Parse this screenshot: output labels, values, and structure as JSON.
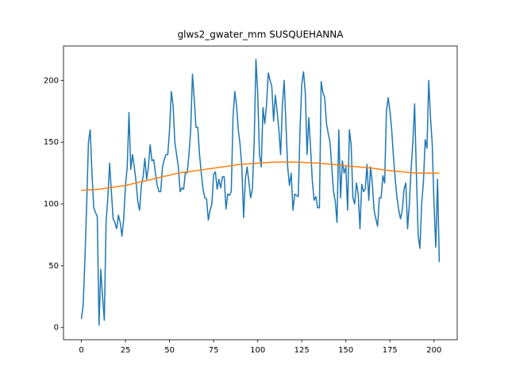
{
  "chart_data": {
    "type": "line",
    "title": "glws2_gwater_mm SUSQUEHANNA",
    "xlim": [
      -10.15,
      213.15
    ],
    "ylim": [
      -9.8,
      227.8
    ],
    "xticks": [
      0,
      25,
      50,
      75,
      100,
      125,
      150,
      175,
      200
    ],
    "yticks": [
      0,
      50,
      100,
      150,
      200
    ],
    "series": [
      {
        "color": "#1f77b4",
        "x": [
          0,
          1,
          2,
          3,
          4,
          5,
          6,
          7,
          8,
          9,
          10,
          11,
          12,
          13,
          14,
          15,
          16,
          17,
          18,
          19,
          20,
          21,
          22,
          23,
          24,
          25,
          26,
          27,
          28,
          29,
          30,
          31,
          32,
          33,
          34,
          35,
          36,
          37,
          38,
          39,
          40,
          41,
          42,
          43,
          44,
          45,
          46,
          47,
          48,
          49,
          50,
          51,
          52,
          53,
          54,
          55,
          56,
          57,
          58,
          59,
          60,
          61,
          62,
          63,
          64,
          65,
          66,
          67,
          68,
          69,
          70,
          71,
          72,
          73,
          74,
          75,
          76,
          77,
          78,
          79,
          80,
          81,
          82,
          83,
          84,
          85,
          86,
          87,
          88,
          89,
          90,
          91,
          92,
          93,
          94,
          95,
          96,
          97,
          98,
          99,
          100,
          101,
          102,
          103,
          104,
          105,
          106,
          107,
          108,
          109,
          110,
          111,
          112,
          113,
          114,
          115,
          116,
          117,
          118,
          119,
          120,
          121,
          122,
          123,
          124,
          125,
          126,
          127,
          128,
          129,
          130,
          131,
          132,
          133,
          134,
          135,
          136,
          137,
          138,
          139,
          140,
          141,
          142,
          143,
          144,
          145,
          146,
          147,
          148,
          149,
          150,
          151,
          152,
          153,
          154,
          155,
          156,
          157,
          158,
          159,
          160,
          161,
          162,
          163,
          164,
          165,
          166,
          167,
          168,
          169,
          170,
          171,
          172,
          173,
          174,
          175,
          176,
          177,
          178,
          179,
          180,
          181,
          182,
          183,
          184,
          185,
          186,
          187,
          188,
          189,
          190,
          191,
          192,
          193,
          194,
          195,
          196,
          197,
          198,
          199,
          200,
          201,
          202,
          203
        ],
        "values": [
          7,
          18,
          55,
          100,
          150,
          160,
          125,
          97,
          93,
          90,
          2,
          47,
          25,
          6,
          85,
          105,
          133,
          110,
          88,
          85,
          80,
          91,
          85,
          74,
          88,
          115,
          130,
          174,
          128,
          140,
          130,
          118,
          102,
          95,
          115,
          122,
          137,
          120,
          130,
          148,
          135,
          136,
          125,
          115,
          110,
          110,
          130,
          136,
          140,
          140,
          160,
          191,
          180,
          150,
          140,
          130,
          110,
          113,
          112,
          126,
          125,
          140,
          160,
          205,
          185,
          162,
          162,
          140,
          125,
          112,
          105,
          104,
          87,
          95,
          100,
          124,
          126,
          112,
          120,
          113,
          122,
          122,
          96,
          108,
          107,
          110,
          170,
          191,
          180,
          160,
          148,
          130,
          89,
          120,
          130,
          118,
          105,
          112,
          150,
          217,
          190,
          140,
          130,
          178,
          165,
          180,
          206,
          200,
          195,
          167,
          188,
          175,
          160,
          140,
          180,
          200,
          165,
          130,
          115,
          125,
          95,
          108,
          107,
          106,
          160,
          197,
          207,
          190,
          140,
          170,
          145,
          118,
          103,
          106,
          97,
          97,
          199,
          190,
          186,
          165,
          157,
          150,
          130,
          110,
          102,
          85,
          160,
          105,
          135,
          125,
          130,
          95,
          160,
          148,
          105,
          100,
          117,
          108,
          80,
          116,
          110,
          112,
          132,
          103,
          130,
          117,
          95,
          88,
          82,
          105,
          105,
          123,
          117,
          175,
          186,
          175,
          160,
          138,
          120,
          105,
          95,
          88,
          95,
          112,
          117,
          80,
          100,
          128,
          150,
          181,
          125,
          75,
          64,
          100,
          118,
          152,
          145,
          200,
          170,
          148,
          100,
          65,
          120,
          53
        ]
      },
      {
        "color": "#ff7f0e",
        "x": [
          0,
          10,
          25,
          40,
          55,
          75,
          90,
          110,
          120,
          135,
          150,
          165,
          175,
          190,
          203
        ],
        "values": [
          111,
          112,
          115,
          120,
          125,
          129,
          132,
          134,
          134,
          133,
          131,
          129,
          127,
          125,
          125
        ]
      }
    ]
  }
}
